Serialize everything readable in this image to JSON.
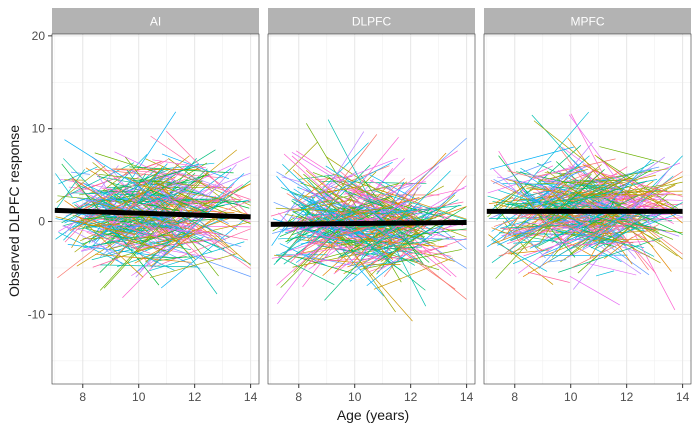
{
  "chart_data": {
    "type": "line",
    "xlabel": "Age (years)",
    "ylabel": "Observed DLPFC response",
    "xlim": [
      6.9,
      14.3
    ],
    "ylim": [
      -17.5,
      20.2
    ],
    "x_ticks": [
      8,
      10,
      12,
      14
    ],
    "y_ticks": [
      -10,
      0,
      10,
      20
    ],
    "grid": true,
    "panels": [
      {
        "name": "AI",
        "trend": [
          [
            7,
            1.2
          ],
          [
            14,
            0.5
          ]
        ]
      },
      {
        "name": "DLPFC",
        "trend": [
          [
            7,
            -0.3
          ],
          [
            14,
            -0.1
          ]
        ]
      },
      {
        "name": "MPFC",
        "trend": [
          [
            7,
            1.1
          ],
          [
            14,
            1.1
          ]
        ]
      }
    ],
    "individual_trajectories": {
      "description": "many thin individual-subject lines in varied colors, centered near 0 with spread of roughly ±8",
      "colors": [
        "#F8766D",
        "#E58700",
        "#C99800",
        "#A3A500",
        "#6BB100",
        "#00BA38",
        "#00BF7D",
        "#00C0AF",
        "#00BCD8",
        "#00B0F6",
        "#619CFF",
        "#B983FF",
        "#E76BF3",
        "#FD61D1",
        "#FF67A4"
      ]
    }
  }
}
